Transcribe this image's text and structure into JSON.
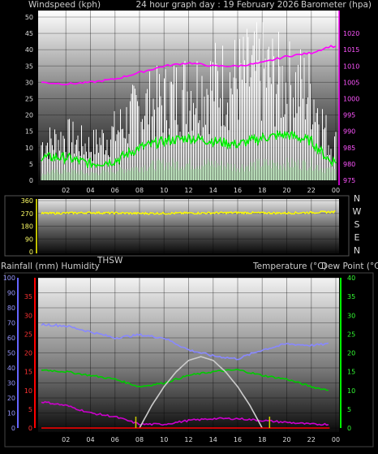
{
  "header": {
    "title": "24 hour graph day : 19 February 2026",
    "left_label": "Windspeed (kph)",
    "right_label": "Barometer (hpa)"
  },
  "middle": {
    "compass_labels": [
      "N",
      "W",
      "S",
      "E",
      "N"
    ]
  },
  "lower_header": {
    "left_label": "Rainfall (mm)  Humidity",
    "center_label": "THSW",
    "right_label": "Temperature (°C)",
    "right_label2": "Dew Point (°C)"
  },
  "chart_data": [
    {
      "type": "line",
      "title": "24 hour graph day : 19 February 2026",
      "xlabel": "",
      "x_ticks": [
        "02",
        "04",
        "06",
        "08",
        "10",
        "12",
        "14",
        "16",
        "18",
        "20",
        "22",
        "00"
      ],
      "y_left_label": "Windspeed (kph)",
      "y_left_range": [
        0,
        50
      ],
      "y_left_ticks": [
        0,
        5,
        10,
        15,
        20,
        25,
        30,
        35,
        40,
        45,
        50
      ],
      "y_right_label": "Barometer (hpa)",
      "y_right_range": [
        975,
        1025
      ],
      "y_right_ticks": [
        975,
        980,
        985,
        990,
        995,
        1000,
        1005,
        1010,
        1015,
        1020
      ],
      "series": [
        {
          "name": "Barometer (hpa)",
          "color": "#ff00ff",
          "axis": "right",
          "x": [
            0,
            2,
            4,
            6,
            8,
            10,
            12,
            14,
            16,
            18,
            20,
            22,
            23.5
          ],
          "values": [
            1005,
            1004.5,
            1005,
            1006,
            1008,
            1010,
            1011,
            1010,
            1010,
            1011,
            1013,
            1014,
            1016
          ]
        },
        {
          "name": "Windspeed average",
          "color": "#00ee00",
          "axis": "left",
          "x": [
            0,
            2,
            4,
            6,
            8,
            10,
            12,
            14,
            16,
            18,
            20,
            22,
            23.5
          ],
          "values": [
            7,
            7,
            5,
            6,
            10,
            12,
            13,
            12,
            11,
            13,
            14,
            12,
            6
          ]
        },
        {
          "name": "Wind gust",
          "color": "#ffffff",
          "axis": "left",
          "x": [
            0,
            2,
            4,
            6,
            8,
            10,
            12,
            14,
            16,
            18,
            20,
            22,
            23.5
          ],
          "values": [
            15,
            18,
            14,
            20,
            30,
            33,
            38,
            40,
            42,
            45,
            40,
            38,
            15
          ]
        },
        {
          "name": "Wind lull",
          "color": "#c8f0c8",
          "axis": "left",
          "x": [
            0,
            2,
            4,
            6,
            8,
            10,
            12,
            14,
            16,
            18,
            20,
            22,
            23.5
          ],
          "values": [
            2,
            3,
            2,
            3,
            4,
            5,
            5,
            5,
            4,
            5,
            5,
            5,
            3
          ]
        }
      ]
    },
    {
      "type": "line",
      "xlabel": "",
      "y_range": [
        0,
        360
      ],
      "y_ticks": [
        0,
        90,
        180,
        270,
        360
      ],
      "series": [
        {
          "name": "Wind direction",
          "color": "#ffff00",
          "x": [
            0,
            4,
            8,
            12,
            16,
            20,
            23.5
          ],
          "values": [
            270,
            275,
            270,
            272,
            275,
            272,
            280
          ]
        }
      ]
    },
    {
      "type": "line",
      "xlabel": "",
      "x_ticks": [
        "02",
        "04",
        "06",
        "08",
        "10",
        "12",
        "14",
        "16",
        "18",
        "20",
        "22",
        "00"
      ],
      "y_humidity_range": [
        0,
        100
      ],
      "y_humidity_ticks": [
        0,
        10,
        20,
        30,
        40,
        50,
        60,
        70,
        80,
        90,
        100
      ],
      "y_rain_ticks": [
        0,
        5,
        10,
        15,
        20,
        25,
        30,
        35
      ],
      "y_temp_range": [
        0,
        40
      ],
      "y_temp_ticks": [
        0,
        5,
        10,
        15,
        20,
        25,
        30,
        35,
        40
      ],
      "series": [
        {
          "name": "Humidity",
          "color": "#8888ff",
          "axis": "humidity",
          "x": [
            0,
            2,
            4,
            6,
            8,
            10,
            12,
            14,
            16,
            18,
            20,
            22,
            23.5
          ],
          "values": [
            69,
            68,
            64,
            60,
            62,
            60,
            52,
            48,
            46,
            52,
            56,
            55,
            56
          ]
        },
        {
          "name": "Temperature (°C)",
          "color": "#00cc00",
          "axis": "temp",
          "x": [
            0,
            2,
            4,
            6,
            8,
            10,
            12,
            14,
            16,
            18,
            20,
            22,
            23.5
          ],
          "values": [
            15.5,
            15,
            14,
            13,
            11,
            12,
            14,
            15,
            15.5,
            14,
            13,
            11,
            10
          ]
        },
        {
          "name": "Dew Point (°C)",
          "color": "#cc00cc",
          "axis": "temp",
          "x": [
            0,
            2,
            4,
            6,
            8,
            10,
            12,
            14,
            16,
            18,
            20,
            22,
            23.5
          ],
          "values": [
            7,
            6,
            4,
            3,
            1,
            1,
            2,
            2.5,
            2.5,
            2,
            1.5,
            1,
            1
          ]
        },
        {
          "name": "THSW",
          "color": "#cccccc",
          "axis": "temp",
          "x": [
            8,
            9,
            10,
            11,
            12,
            13,
            14,
            15,
            16,
            17,
            18
          ],
          "values": [
            0,
            6,
            11,
            15,
            18,
            19,
            18,
            15,
            11,
            6,
            0
          ]
        },
        {
          "name": "Rainfall (mm)",
          "color": "#ff0000",
          "axis": "rain",
          "x": [
            0,
            23.5
          ],
          "values": [
            0,
            0
          ]
        }
      ],
      "markers": [
        {
          "x": 7.7,
          "color": "#cccc00"
        },
        {
          "x": 18.6,
          "color": "#cccc00"
        }
      ]
    }
  ]
}
